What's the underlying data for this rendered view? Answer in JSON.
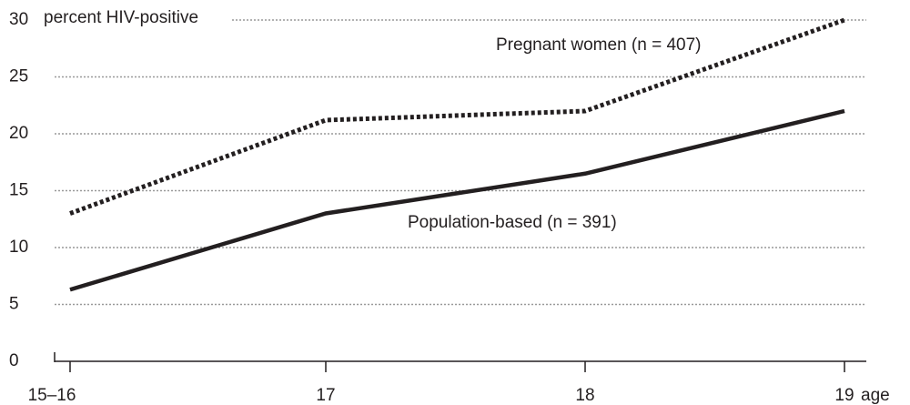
{
  "chart_data": {
    "type": "line",
    "y_label": "percent HIV-positive",
    "x_label": "age",
    "categories": [
      "15–16",
      "17",
      "18",
      "19"
    ],
    "series": [
      {
        "name": "Pregnant women (n = 407)",
        "color": "#231f20",
        "dash": "dotted",
        "values": [
          13,
          21.2,
          22,
          30
        ]
      },
      {
        "name": "Population-based (n = 391)",
        "color": "#231f20",
        "dash": "solid",
        "values": [
          6.3,
          13,
          16.5,
          22
        ]
      }
    ],
    "ylim": [
      0,
      30
    ],
    "yticks": [
      0,
      5,
      10,
      15,
      20,
      25,
      30
    ],
    "grid": true
  }
}
